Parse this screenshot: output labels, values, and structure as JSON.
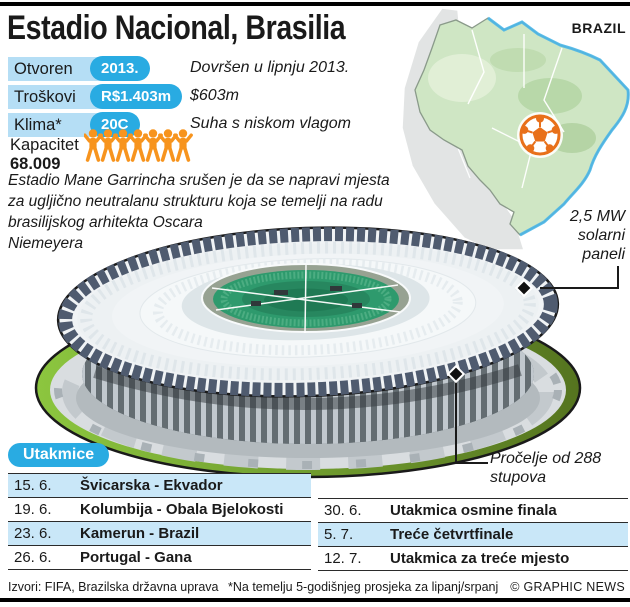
{
  "title": "Estadio Nacional, Brasilia",
  "map": {
    "country_label": "BRAZIL",
    "marker_icon": "soccer-ball-icon"
  },
  "stats": {
    "rows": [
      {
        "label": "Otvoren",
        "value": "2013.",
        "note": "Dovršen u lipnju 2013."
      },
      {
        "label": "Troškovi",
        "value": "R$1.403m",
        "note": "$603m"
      },
      {
        "label": "Klima*",
        "value": "20C",
        "note": "Suha s niskom vlagom"
      }
    ],
    "capacity_label": "Kapacitet",
    "capacity_value": "68.009",
    "capacity_icons": 7
  },
  "description_lines": [
    "Estadio Mane Garrincha srušen je da se napravi mjesta",
    "za ugljično neutralanu strukturu koja se temelji na radu",
    "brasilijskog arhitekta Oscara",
    "Niemeyera"
  ],
  "callouts": {
    "solar_lines": [
      "2,5 MW",
      "solarni",
      "paneli"
    ],
    "facade_lines": [
      "Pročelje od 288",
      "stupova"
    ]
  },
  "matches": {
    "header": "Utakmice",
    "left": [
      {
        "date": "15. 6.",
        "label": "Švicarska - Ekvador",
        "highlight": true
      },
      {
        "date": "19. 6.",
        "label": "Kolumbija - Obala Bjelokosti",
        "highlight": false
      },
      {
        "date": "23. 6.",
        "label": "Kamerun - Brazil",
        "highlight": true
      },
      {
        "date": "26. 6.",
        "label": "Portugal - Gana",
        "highlight": false
      }
    ],
    "right": [
      {
        "date": "30. 6.",
        "label": "Utakmica osmine finala",
        "highlight": false
      },
      {
        "date": "5. 7.",
        "label": "Treće četvrtfinale",
        "highlight": true
      },
      {
        "date": "12. 7.",
        "label": "Utakmica za treće mjesto",
        "highlight": false
      }
    ]
  },
  "footer": {
    "sources": "Izvori: FIFA, Brazilska državna uprava",
    "note": "*Na temelju 5-godišnjeg prosjeka za lipanj/srpanj",
    "credit": "© GRAPHIC NEWS"
  },
  "colors": {
    "accent_blue": "#29abe2",
    "label_box_blue": "#b5def5",
    "row_highlight_blue": "#c9e7f8",
    "people_orange": "#f7941e",
    "map_green": "#cfe6c4",
    "solar_panel_slate": "#4f5b6f"
  }
}
